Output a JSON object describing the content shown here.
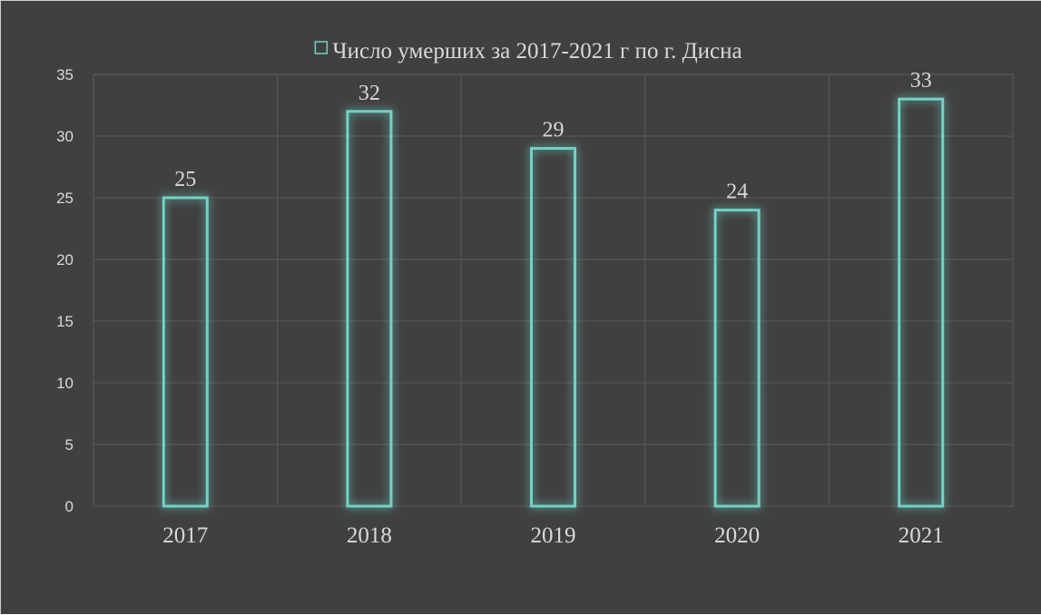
{
  "chart_data": {
    "type": "bar",
    "title": "",
    "xlabel": "",
    "ylabel": "",
    "categories": [
      "2017",
      "2018",
      "2019",
      "2020",
      "2021"
    ],
    "series": [
      {
        "name": "Число умерших за 2017-2021 г по г. Дисна",
        "values": [
          25,
          32,
          29,
          24,
          33
        ]
      }
    ],
    "ylim": [
      0,
      35
    ],
    "yticks": [
      0,
      5,
      10,
      15,
      20,
      25,
      30,
      35
    ],
    "grid": true,
    "legend_position": "top",
    "data_labels": true,
    "colors": {
      "background": "#404040",
      "bar_outline": "#6fd3c6",
      "bar_glow": "#3fa59a",
      "gridline": "#5a5a5a",
      "text": "#d9d9d9"
    }
  }
}
